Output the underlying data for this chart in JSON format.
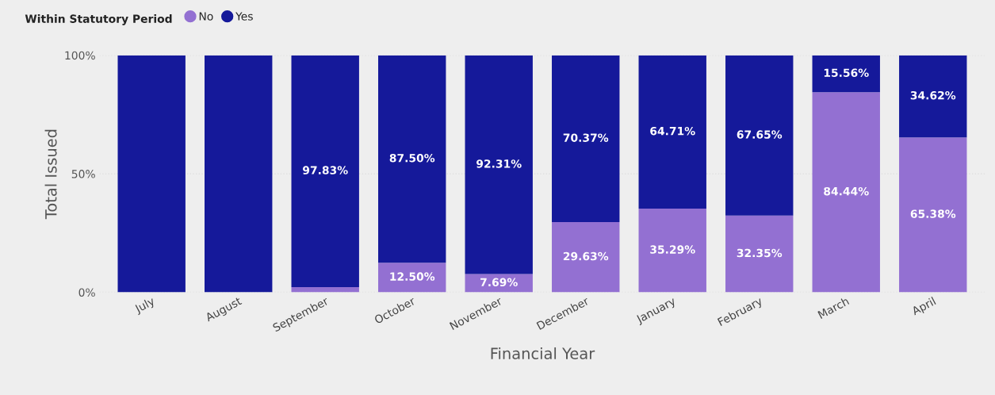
{
  "chart_data": {
    "type": "bar",
    "stacked": true,
    "legend_title": "Within Statutory Period",
    "xlabel": "Financial Year",
    "ylabel": "Total Issued",
    "categories": [
      "July",
      "August",
      "September",
      "October",
      "November",
      "December",
      "January",
      "February",
      "March",
      "April"
    ],
    "series": [
      {
        "name": "No",
        "color": "#9370d2",
        "values": [
          0,
          0,
          2.2,
          12.5,
          7.69,
          29.63,
          35.29,
          32.35,
          84.44,
          65.38
        ],
        "value_labels": [
          null,
          null,
          null,
          "12.50%",
          "7.69%",
          "29.63%",
          "35.29%",
          "32.35%",
          "84.44%",
          "65.38%"
        ]
      },
      {
        "name": "Yes",
        "color": "#15199a",
        "values": [
          100,
          100,
          97.83,
          87.5,
          92.31,
          70.37,
          64.71,
          67.65,
          15.56,
          34.62
        ],
        "value_labels": [
          null,
          null,
          "97.83%",
          "87.50%",
          "92.31%",
          "70.37%",
          "64.71%",
          "67.65%",
          "15.56%",
          "34.62%"
        ]
      }
    ],
    "ylim": [
      0,
      100
    ],
    "yticks": [
      {
        "value": 0,
        "label": "0%"
      },
      {
        "value": 50,
        "label": "50%"
      },
      {
        "value": 100,
        "label": "100%"
      }
    ],
    "grid": "y",
    "legend": "top left"
  }
}
